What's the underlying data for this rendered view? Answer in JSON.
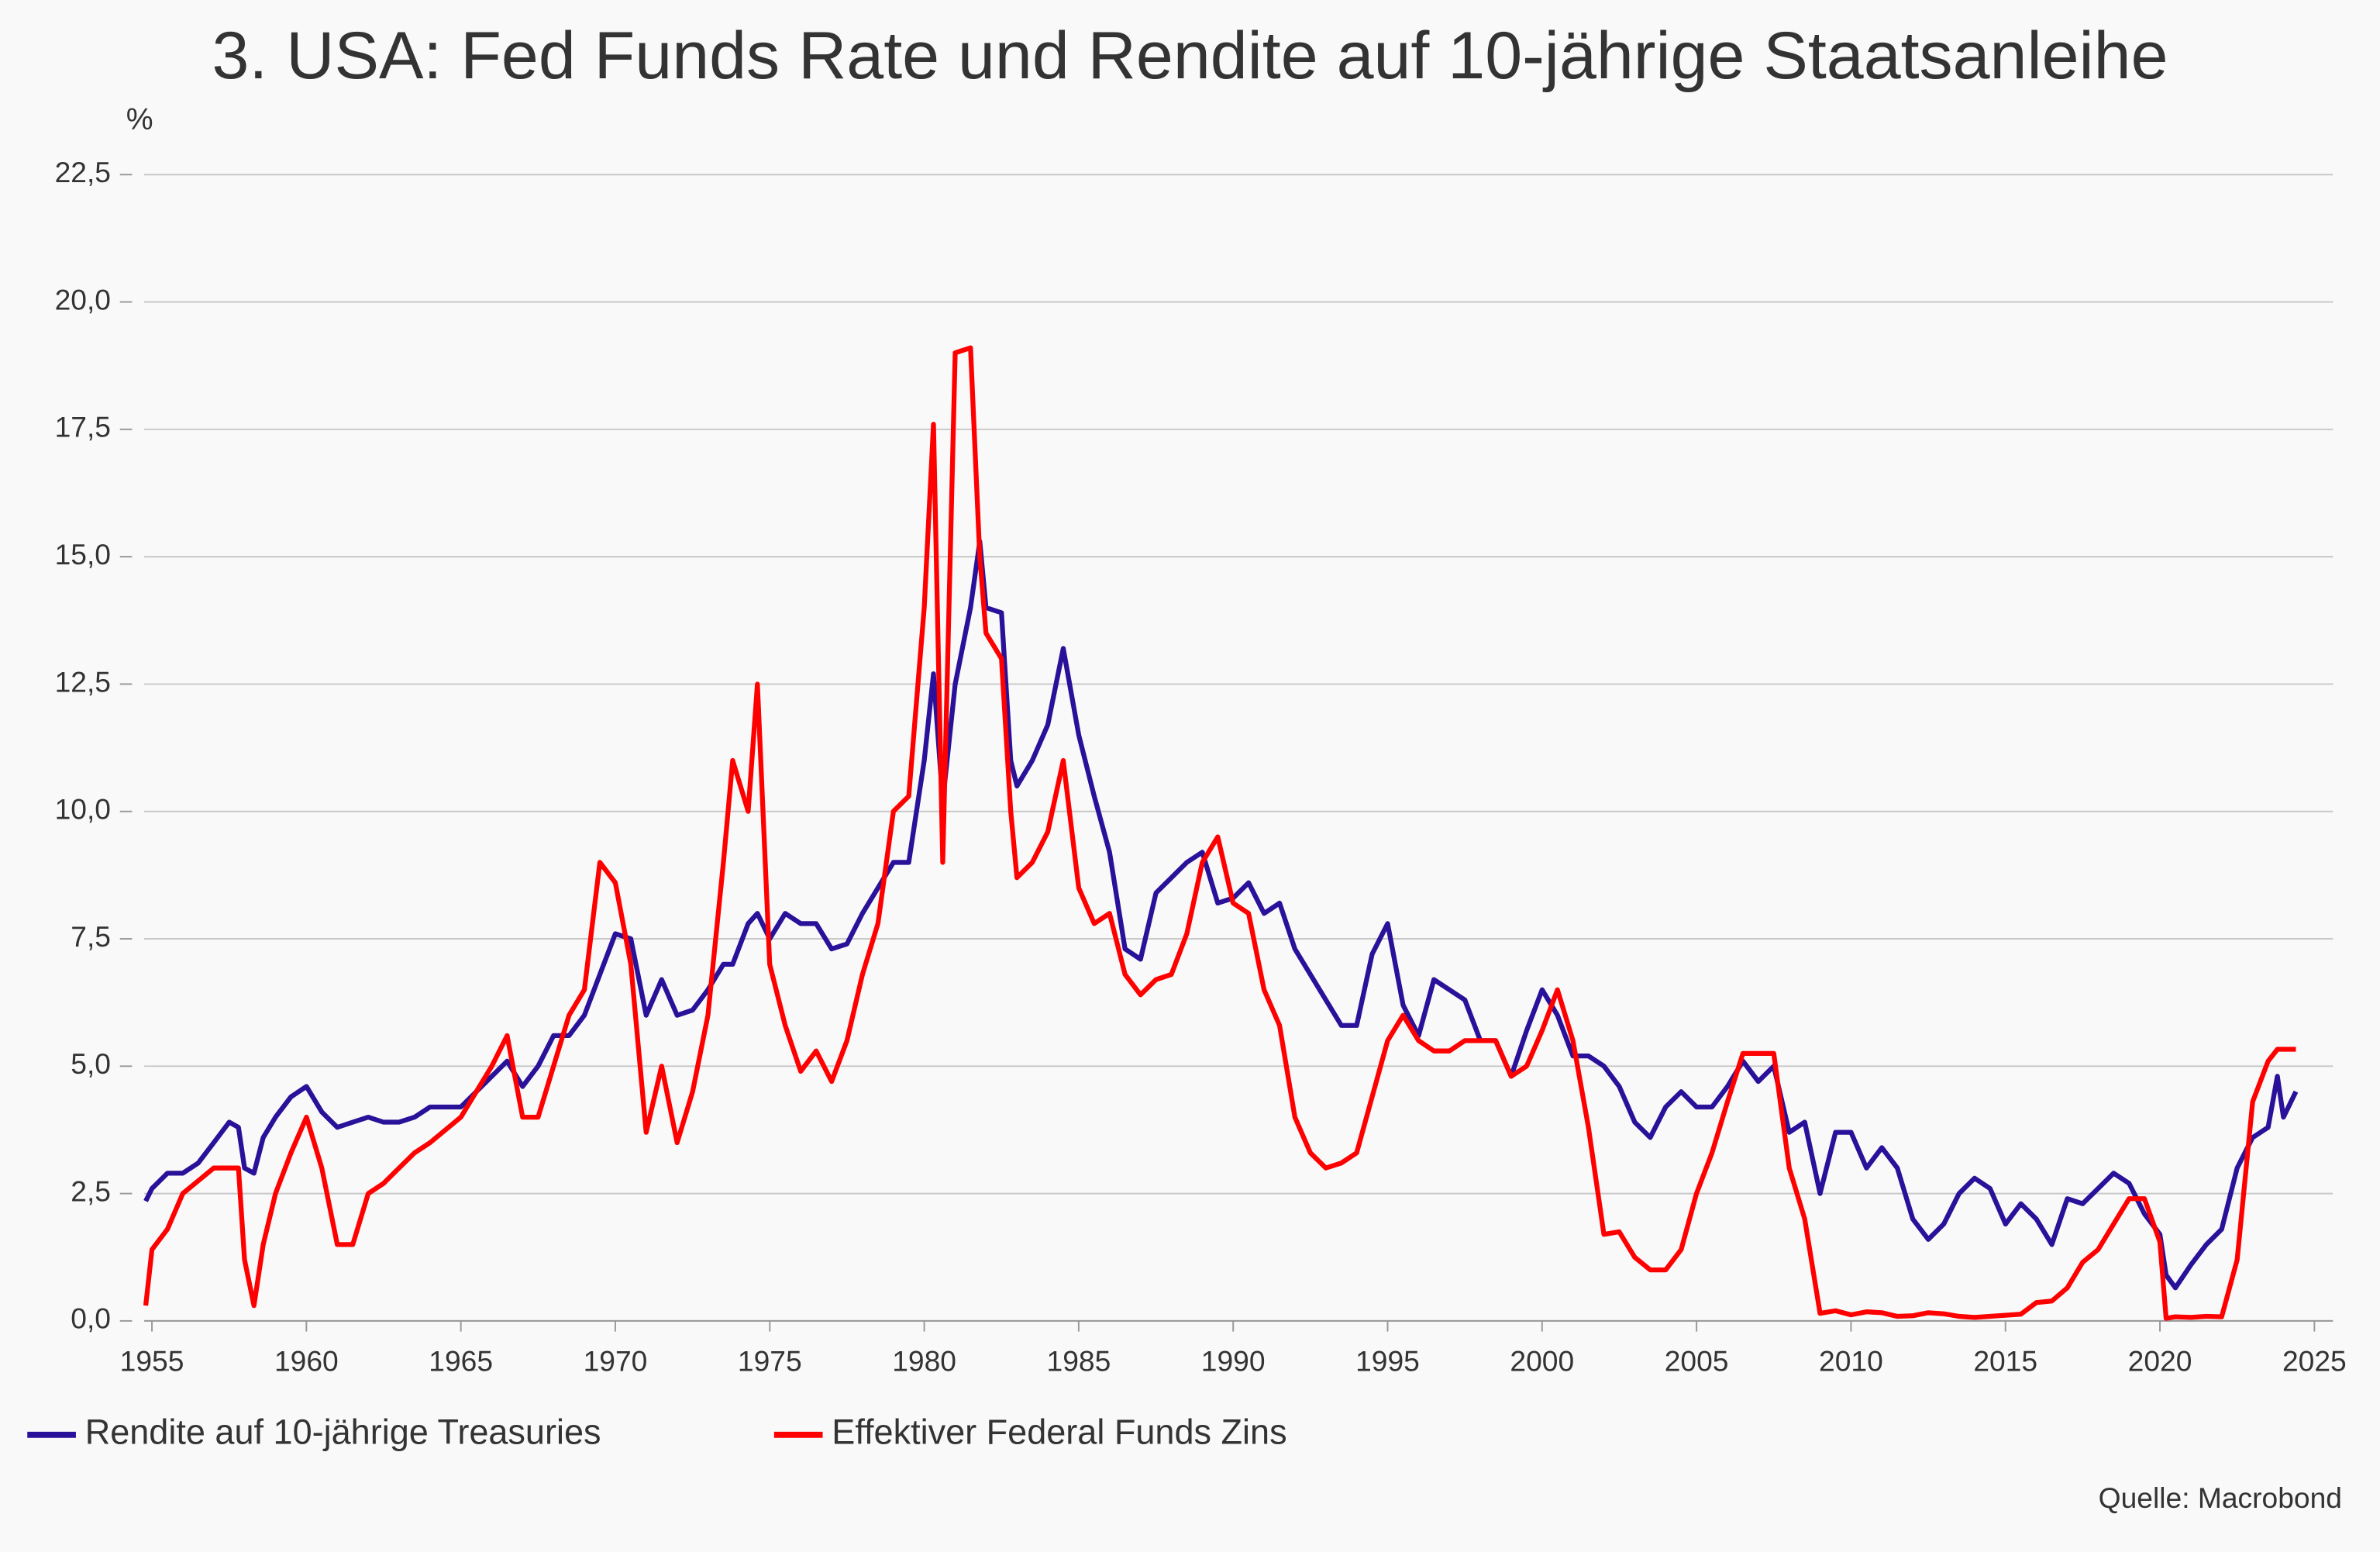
{
  "chart_data": {
    "type": "line",
    "title": "3. USA: Fed Funds Rate und Rendite auf 10-jährige Staatsanleihe",
    "y_unit": "%",
    "source": "Quelle: Macrobond",
    "xlim": [
      1954.75,
      2025.6
    ],
    "xticks": [
      1955,
      1960,
      1965,
      1970,
      1975,
      1980,
      1985,
      1990,
      1995,
      2000,
      2005,
      2010,
      2015,
      2020,
      2025
    ],
    "ylim": [
      0,
      22.5
    ],
    "yticks": [
      {
        "value": 0,
        "label": "0,0"
      },
      {
        "value": 2.5,
        "label": "2,5"
      },
      {
        "value": 5,
        "label": "5,0"
      },
      {
        "value": 7.5,
        "label": "7,5"
      },
      {
        "value": 10,
        "label": "10,0"
      },
      {
        "value": 12.5,
        "label": "12,5"
      },
      {
        "value": 15,
        "label": "15,0"
      },
      {
        "value": 17.5,
        "label": "17,5"
      },
      {
        "value": 20,
        "label": "20,0"
      },
      {
        "value": 22.5,
        "label": "22,5"
      }
    ],
    "grid": true,
    "x": [
      1954.8,
      1955,
      1955.5,
      1956,
      1956.5,
      1957,
      1957.5,
      1957.8,
      1958,
      1958.3,
      1958.6,
      1959,
      1959.5,
      1960,
      1960.5,
      1961,
      1961.5,
      1962,
      1962.5,
      1963,
      1963.5,
      1964,
      1965,
      1966,
      1966.5,
      1967,
      1967.5,
      1968,
      1968.5,
      1969,
      1969.5,
      1970,
      1970.5,
      1971,
      1971.5,
      1972,
      1972.5,
      1973,
      1973.5,
      1973.8,
      1974.3,
      1974.6,
      1975,
      1975.5,
      1976,
      1976.5,
      1977,
      1977.5,
      1978,
      1978.5,
      1979,
      1979.5,
      1980,
      1980.3,
      1980.6,
      1981,
      1981.5,
      1981.8,
      1982,
      1982.5,
      1982.8,
      1983,
      1983.5,
      1984,
      1984.5,
      1985,
      1985.5,
      1986,
      1986.5,
      1987,
      1987.5,
      1988,
      1988.5,
      1989,
      1989.5,
      1990,
      1990.5,
      1991,
      1991.5,
      1992,
      1992.5,
      1993,
      1993.5,
      1994,
      1994.5,
      1995,
      1995.5,
      1996,
      1996.5,
      1997,
      1997.5,
      1998,
      1998.5,
      1999,
      1999.5,
      2000,
      2000.5,
      2001,
      2001.5,
      2002,
      2002.5,
      2003,
      2003.5,
      2004,
      2004.5,
      2005,
      2005.5,
      2006,
      2006.5,
      2007,
      2007.5,
      2008,
      2008.5,
      2009,
      2009.5,
      2010,
      2010.5,
      2011,
      2011.5,
      2012,
      2012.5,
      2013,
      2013.5,
      2014,
      2014.5,
      2015,
      2015.5,
      2016,
      2016.5,
      2017,
      2017.5,
      2018,
      2018.5,
      2019,
      2019.5,
      2020,
      2020.2,
      2020.5,
      2021,
      2021.5,
      2022,
      2022.5,
      2023,
      2023.5,
      2023.8,
      2024,
      2024.4
    ],
    "series": [
      {
        "name": "Rendite auf 10-jährige Treasuries",
        "color": "#2a1199",
        "values": [
          2.35,
          2.6,
          2.9,
          2.9,
          3.1,
          3.5,
          3.9,
          3.8,
          3.0,
          2.9,
          3.6,
          4.0,
          4.4,
          4.6,
          4.1,
          3.8,
          3.9,
          4.0,
          3.9,
          3.9,
          4.0,
          4.2,
          4.2,
          4.8,
          5.1,
          4.6,
          5.0,
          5.6,
          5.6,
          6.0,
          6.8,
          7.6,
          7.5,
          6.0,
          6.7,
          6.0,
          6.1,
          6.5,
          7.0,
          7.0,
          7.8,
          8.0,
          7.5,
          8.0,
          7.8,
          7.8,
          7.3,
          7.4,
          8.0,
          8.5,
          9.0,
          9.0,
          11.0,
          12.7,
          10.2,
          12.5,
          14.0,
          15.3,
          14.0,
          13.9,
          11.0,
          10.5,
          11.0,
          11.7,
          13.2,
          11.5,
          10.3,
          9.2,
          7.3,
          7.1,
          8.4,
          8.7,
          9.0,
          9.2,
          8.2,
          8.3,
          8.6,
          8.0,
          8.2,
          7.3,
          6.8,
          6.3,
          5.8,
          5.8,
          7.2,
          7.8,
          6.2,
          5.6,
          6.7,
          6.5,
          6.3,
          5.5,
          5.5,
          4.8,
          5.7,
          6.5,
          6.0,
          5.2,
          5.2,
          5.0,
          4.6,
          3.9,
          3.6,
          4.2,
          4.5,
          4.2,
          4.2,
          4.6,
          5.1,
          4.7,
          5.0,
          3.7,
          3.9,
          2.5,
          3.7,
          3.7,
          3.0,
          3.4,
          3.0,
          2.0,
          1.6,
          1.9,
          2.5,
          2.8,
          2.6,
          1.9,
          2.3,
          2.0,
          1.5,
          2.4,
          2.3,
          2.6,
          2.9,
          2.7,
          2.1,
          1.7,
          0.9,
          0.65,
          1.1,
          1.5,
          1.8,
          3.0,
          3.6,
          3.8,
          4.8,
          4.0,
          4.5
        ]
      },
      {
        "name": "Effektiver Federal Funds Zins",
        "color": "#ff0000",
        "values": [
          0.3,
          1.4,
          1.8,
          2.5,
          2.75,
          3.0,
          3.0,
          3.0,
          1.2,
          0.3,
          1.5,
          2.5,
          3.3,
          4.0,
          3.0,
          1.5,
          1.5,
          2.5,
          2.7,
          3.0,
          3.3,
          3.5,
          4.0,
          5.0,
          5.6,
          4.0,
          4.0,
          5.0,
          6.0,
          6.5,
          9.0,
          8.6,
          7.0,
          3.7,
          5.0,
          3.5,
          4.5,
          6.0,
          9.0,
          11.0,
          10.0,
          12.5,
          7.0,
          5.8,
          4.9,
          5.3,
          4.7,
          5.5,
          6.8,
          7.8,
          10.0,
          10.3,
          14.0,
          17.6,
          9.0,
          19.0,
          19.1,
          15.0,
          13.5,
          13.0,
          10.0,
          8.7,
          9.0,
          9.6,
          11.0,
          8.5,
          7.8,
          8.0,
          6.8,
          6.4,
          6.7,
          6.8,
          7.6,
          9.0,
          9.5,
          8.2,
          8.0,
          6.5,
          5.8,
          4.0,
          3.3,
          3.0,
          3.1,
          3.3,
          4.4,
          5.5,
          6.0,
          5.5,
          5.3,
          5.3,
          5.5,
          5.5,
          5.5,
          4.8,
          5.0,
          5.7,
          6.5,
          5.5,
          3.8,
          1.7,
          1.75,
          1.25,
          1.0,
          1.0,
          1.4,
          2.5,
          3.3,
          4.3,
          5.25,
          5.25,
          5.25,
          3.0,
          2.0,
          0.15,
          0.2,
          0.12,
          0.18,
          0.16,
          0.09,
          0.1,
          0.16,
          0.14,
          0.09,
          0.07,
          0.09,
          0.11,
          0.13,
          0.36,
          0.39,
          0.65,
          1.15,
          1.4,
          1.9,
          2.4,
          2.4,
          1.55,
          0.05,
          0.08,
          0.07,
          0.09,
          0.08,
          1.2,
          4.3,
          5.1,
          5.33,
          5.33,
          5.33
        ]
      }
    ]
  }
}
